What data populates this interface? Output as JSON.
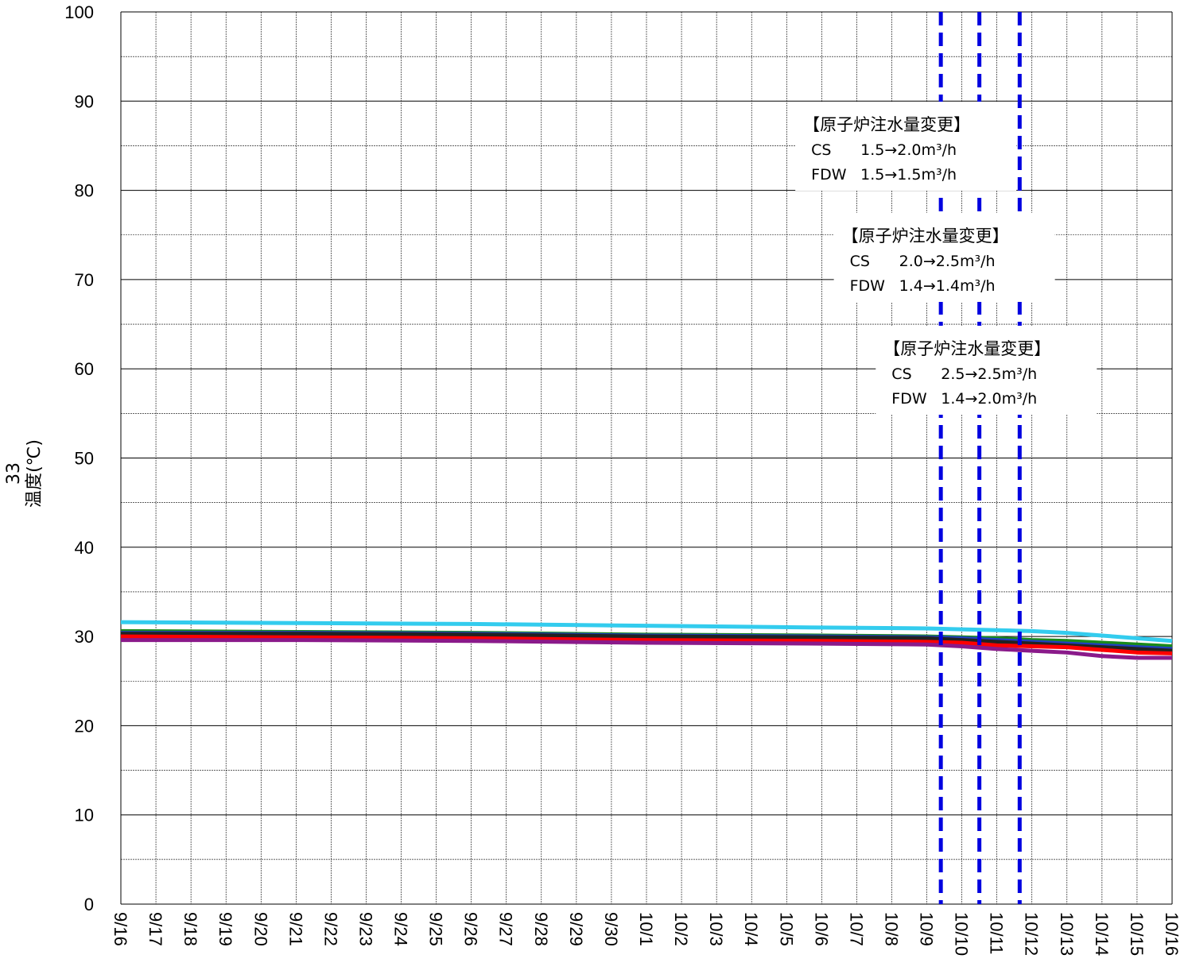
{
  "chart_data": {
    "type": "line",
    "title": "",
    "xlabel": "",
    "ylabel": "温度(℃)",
    "ylabel_prefix": "33",
    "ylim": [
      0,
      100
    ],
    "yticks": [
      0,
      10,
      20,
      30,
      40,
      50,
      60,
      70,
      80,
      90,
      100
    ],
    "x_tick_labels": [
      "9/16",
      "9/17",
      "9/18",
      "9/19",
      "9/20",
      "9/21",
      "9/22",
      "9/23",
      "9/24",
      "9/25",
      "9/26",
      "9/27",
      "9/28",
      "9/29",
      "9/30",
      "10/1",
      "10/2",
      "10/3",
      "10/4",
      "10/5",
      "10/6",
      "10/7",
      "10/8",
      "10/9",
      "10/10",
      "10/11",
      "10/12",
      "10/13",
      "10/14",
      "10/15",
      "10/16"
    ],
    "xlim": [
      "9/16",
      "10/16"
    ],
    "grid": true,
    "legend": "none",
    "series": [
      {
        "color": "#33ccee",
        "x": [
          "9/16",
          "9/21",
          "9/26",
          "10/1",
          "10/6",
          "10/9",
          "10/10",
          "10/12",
          "10/13",
          "10/14",
          "10/15",
          "10/16"
        ],
        "values": [
          31.6,
          31.5,
          31.4,
          31.2,
          31.0,
          30.9,
          30.8,
          30.6,
          30.4,
          30.1,
          29.8,
          29.5
        ]
      },
      {
        "color": "#1a8a1a",
        "x": [
          "9/16",
          "9/21",
          "9/26",
          "10/1",
          "10/6",
          "10/9",
          "10/10",
          "10/11",
          "10/12",
          "10/13",
          "10/14",
          "10/15",
          "10/16"
        ],
        "values": [
          30.6,
          30.5,
          30.4,
          30.2,
          30.1,
          30.0,
          29.9,
          29.8,
          29.6,
          29.5,
          29.3,
          29.1,
          28.9
        ]
      },
      {
        "color": "#2040c0",
        "x": [
          "9/16",
          "9/21",
          "9/26",
          "10/1",
          "10/6",
          "10/9",
          "10/10",
          "10/11",
          "10/12",
          "10/13",
          "10/14",
          "10/15",
          "10/16"
        ],
        "values": [
          30.4,
          30.4,
          30.3,
          30.1,
          30.0,
          29.9,
          29.8,
          29.6,
          29.4,
          29.2,
          29.0,
          28.8,
          28.6
        ]
      },
      {
        "color": "#222222",
        "x": [
          "9/16",
          "9/21",
          "9/26",
          "10/1",
          "10/6",
          "10/9",
          "10/10",
          "10/11",
          "10/12",
          "10/13",
          "10/14",
          "10/15",
          "10/16"
        ],
        "values": [
          30.3,
          30.3,
          30.2,
          30.0,
          29.9,
          29.8,
          29.6,
          29.4,
          29.2,
          29.0,
          28.8,
          28.6,
          28.4
        ]
      },
      {
        "color": "#ff0000",
        "x": [
          "9/16",
          "9/21",
          "9/26",
          "10/1",
          "10/6",
          "10/9",
          "10/10",
          "10/11",
          "10/12",
          "10/13",
          "10/14",
          "10/15",
          "10/16"
        ],
        "values": [
          30.0,
          29.9,
          29.8,
          29.6,
          29.5,
          29.4,
          29.3,
          29.0,
          28.9,
          28.8,
          28.5,
          28.2,
          28.1
        ]
      },
      {
        "color": "#8a1a8a",
        "x": [
          "9/16",
          "9/21",
          "9/26",
          "10/1",
          "10/6",
          "10/9",
          "10/10",
          "10/11",
          "10/12",
          "10/13",
          "10/14",
          "10/15",
          "10/16"
        ],
        "values": [
          29.6,
          29.6,
          29.5,
          29.3,
          29.2,
          29.1,
          28.9,
          28.6,
          28.4,
          28.2,
          27.8,
          27.6,
          27.6
        ]
      }
    ],
    "markers": [
      {
        "date": "10/9",
        "offset_days": 0.4,
        "color": "#0000e0"
      },
      {
        "date": "10/10",
        "offset_days": 0.5,
        "color": "#0000e0"
      },
      {
        "date": "10/11",
        "offset_days": 0.65,
        "color": "#0000e0"
      }
    ],
    "annotations": [
      {
        "title": "【原子炉注水量変更】",
        "cs_label": "CS",
        "cs_value": "1.5→2.0m³/h",
        "fdw_label": "FDW",
        "fdw_value": "1.5→1.5m³/h"
      },
      {
        "title": "【原子炉注水量変更】",
        "cs_label": "CS",
        "cs_value": "2.0→2.5m³/h",
        "fdw_label": "FDW",
        "fdw_value": "1.4→1.4m³/h"
      },
      {
        "title": "【原子炉注水量変更】",
        "cs_label": "CS",
        "cs_value": "2.5→2.5m³/h",
        "fdw_label": "FDW",
        "fdw_value": "1.4→2.0m³/h"
      }
    ]
  }
}
